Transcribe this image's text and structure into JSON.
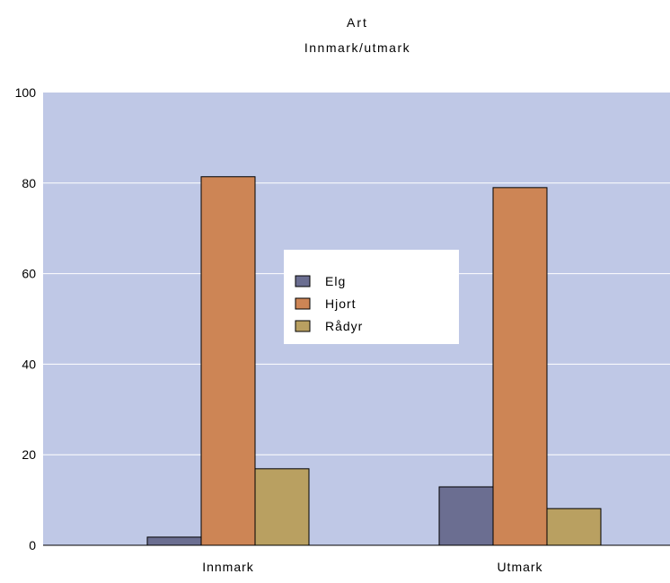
{
  "chart_data": {
    "type": "bar",
    "title": "Art",
    "subtitle": "Innmark/utmark",
    "categories": [
      "Innmark",
      "Utmark"
    ],
    "series": [
      {
        "name": "Elg",
        "values": [
          1.8,
          12.9
        ],
        "color": "#6b6e91"
      },
      {
        "name": "Hjort",
        "values": [
          81.4,
          79.0
        ],
        "color": "#cd8555"
      },
      {
        "name": "Rådyr",
        "values": [
          16.9,
          8.1
        ],
        "color": "#b9a061"
      }
    ],
    "yticks": [
      0,
      20,
      40,
      60,
      80,
      100
    ],
    "ylim": [
      0,
      100
    ],
    "grid": true,
    "legend_position": "center",
    "plot_background": "#bfc8e6"
  }
}
